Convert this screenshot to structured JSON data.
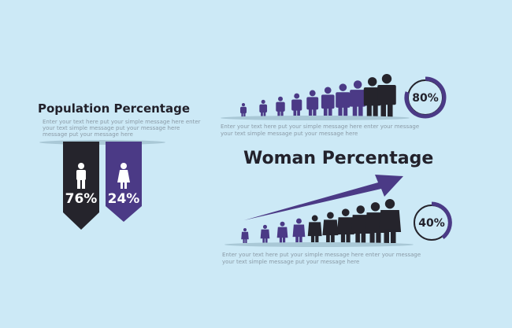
{
  "population": {
    "title": "Population Percentage",
    "text": [
      "Enter your text here put your simple message here enter",
      "your text simple message put your message here",
      "message put your message here"
    ],
    "male": "76%",
    "female": "24%"
  },
  "men": {
    "percent": "80%",
    "text": [
      "Enter your text here put your simple message here enter your message",
      "your text simple message put your message here"
    ]
  },
  "woman": {
    "title": "Woman Percentage",
    "percent": "40%",
    "text": [
      "Enter your text here put your simple message here enter your message",
      "your text simple message put your message here"
    ]
  }
}
